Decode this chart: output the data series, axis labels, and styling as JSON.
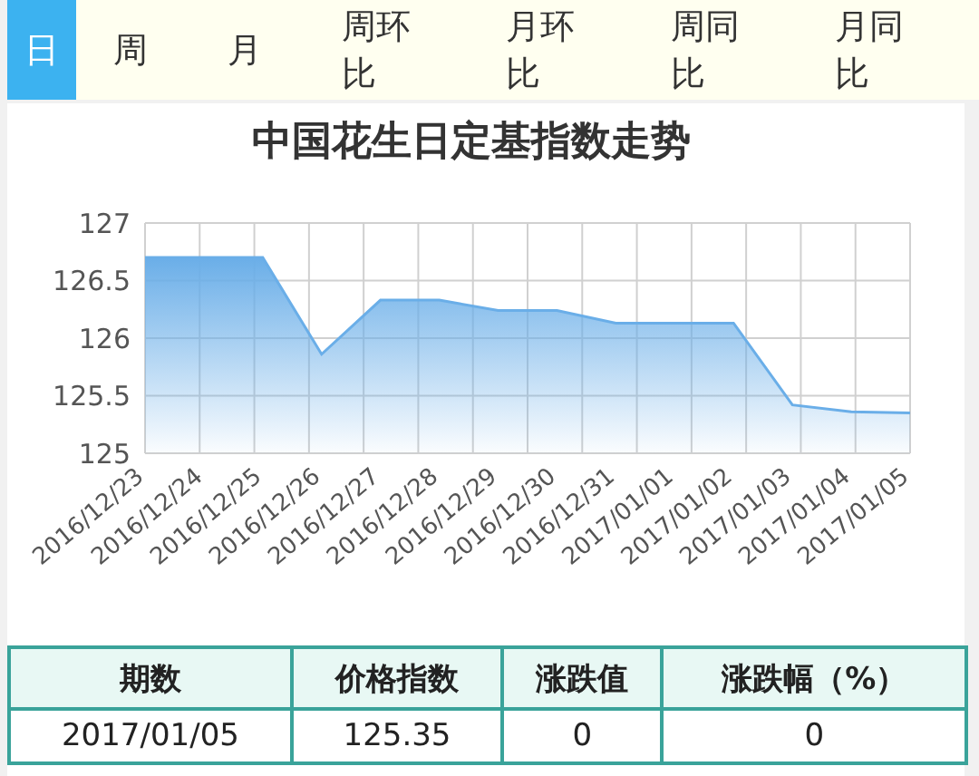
{
  "chart_data": {
    "type": "area",
    "title": "中国花生日定基指数走势",
    "categories": [
      "2016/12/23",
      "2016/12/24",
      "2016/12/25",
      "2016/12/26",
      "2016/12/27",
      "2016/12/28",
      "2016/12/29",
      "2016/12/30",
      "2016/12/31",
      "2017/01/01",
      "2017/01/02",
      "2017/01/03",
      "2017/01/04",
      "2017/01/05"
    ],
    "series": [
      {
        "color": "#6aaee8",
        "values": [
          126.7,
          126.7,
          126.7,
          125.86,
          126.33,
          126.33,
          126.24,
          126.24,
          126.13,
          126.13,
          126.13,
          125.42,
          125.36,
          125.35
        ]
      }
    ],
    "ylim": [
      125,
      127
    ],
    "yticks": [
      125,
      125.5,
      126,
      126.5,
      127
    ],
    "grid": true,
    "legend": false,
    "annotations": [
      "日",
      "周",
      "月",
      "周环比",
      "月环比",
      "周同比",
      "月同比",
      "期数",
      "价格指数",
      "涨跌值",
      "涨跌幅（%）",
      "2017/01/05",
      "125.35",
      "0",
      "0"
    ]
  }
}
